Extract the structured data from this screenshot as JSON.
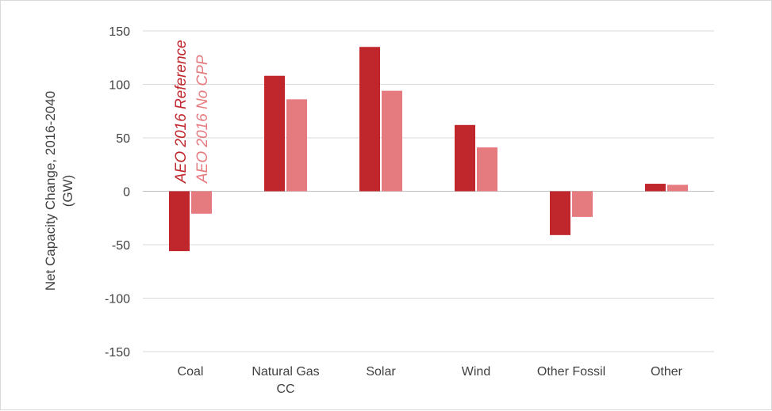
{
  "chart_data": {
    "type": "bar",
    "ylabel_lines": [
      "Net Capacity Change, 2016-2040",
      "(GW)"
    ],
    "ylim": [
      -150,
      150
    ],
    "yticks": [
      150,
      100,
      50,
      0,
      -50,
      -100,
      -150
    ],
    "categories": [
      {
        "lines": [
          "Coal"
        ]
      },
      {
        "lines": [
          "Natural Gas",
          "CC"
        ]
      },
      {
        "lines": [
          "Solar"
        ]
      },
      {
        "lines": [
          "Wind"
        ]
      },
      {
        "lines": [
          "Other Fossil"
        ]
      },
      {
        "lines": [
          "Other"
        ]
      }
    ],
    "series": [
      {
        "name": "AEO 2016 Reference",
        "color": "#c0272d",
        "values": [
          -56,
          108,
          135,
          62,
          -41,
          7
        ]
      },
      {
        "name": "AEO 2016 No CPP",
        "color": "#e57b7f",
        "values": [
          -21,
          86,
          94,
          41,
          -24,
          6
        ]
      }
    ],
    "grid": true,
    "legend": "rotated labels above the Coal bars"
  }
}
